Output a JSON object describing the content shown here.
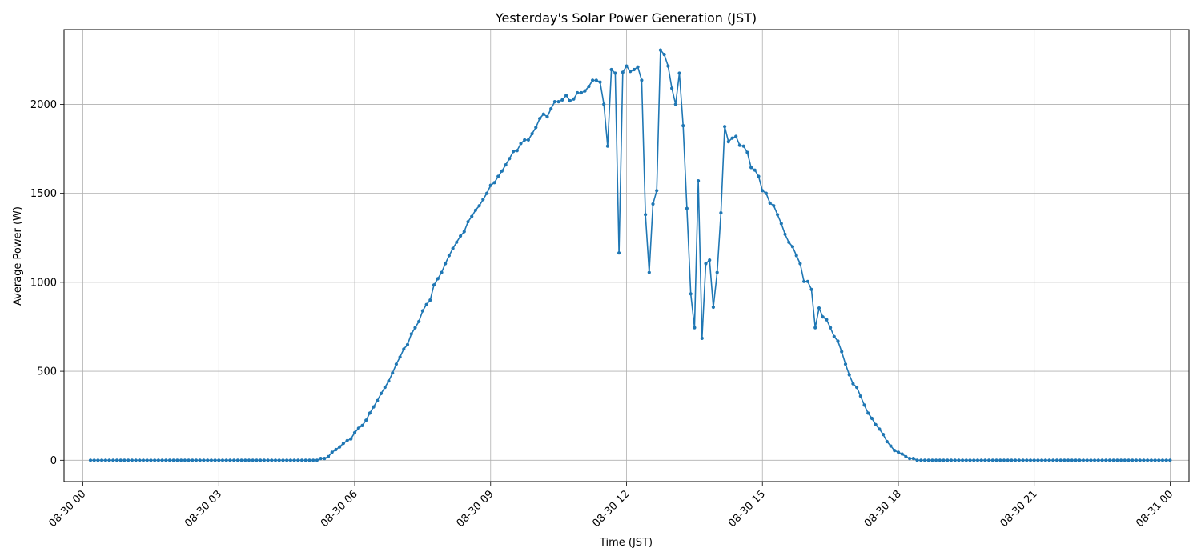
{
  "chart_data": {
    "type": "line",
    "title": "Yesterday's Solar Power Generation (JST)",
    "xlabel": "Time (JST)",
    "ylabel": "Average Power (W)",
    "xlim": [
      "08-29 23:35",
      "08-31 00:25"
    ],
    "ylim": [
      -120,
      2420
    ],
    "grid": true,
    "x_ticks": [
      "08-30 00",
      "08-30 03",
      "08-30 06",
      "08-30 09",
      "08-30 12",
      "08-30 15",
      "08-30 18",
      "08-30 21",
      "08-31 00"
    ],
    "y_ticks": [
      0,
      500,
      1000,
      1500,
      2000
    ],
    "series": [
      {
        "color": "#1f77b4",
        "marker": "circle",
        "points": [
          [
            "08-30 00:10",
            0
          ],
          [
            "08-30 05:10",
            0
          ],
          [
            "08-30 05:15",
            10
          ],
          [
            "08-30 05:20",
            10
          ],
          [
            "08-30 05:25",
            20
          ],
          [
            "08-30 05:30",
            45
          ],
          [
            "08-30 05:35",
            60
          ],
          [
            "08-30 05:40",
            75
          ],
          [
            "08-30 05:45",
            95
          ],
          [
            "08-30 05:50",
            110
          ],
          [
            "08-30 05:55",
            120
          ],
          [
            "08-30 06:00",
            155
          ],
          [
            "08-30 06:05",
            180
          ],
          [
            "08-30 06:10",
            195
          ],
          [
            "08-30 06:15",
            225
          ],
          [
            "08-30 06:20",
            265
          ],
          [
            "08-30 06:25",
            300
          ],
          [
            "08-30 06:30",
            335
          ],
          [
            "08-30 06:35",
            375
          ],
          [
            "08-30 06:40",
            410
          ],
          [
            "08-30 06:45",
            445
          ],
          [
            "08-30 06:50",
            490
          ],
          [
            "08-30 06:55",
            540
          ],
          [
            "08-30 07:00",
            580
          ],
          [
            "08-30 07:05",
            625
          ],
          [
            "08-30 07:10",
            650
          ],
          [
            "08-30 07:15",
            710
          ],
          [
            "08-30 07:20",
            745
          ],
          [
            "08-30 07:25",
            780
          ],
          [
            "08-30 07:30",
            840
          ],
          [
            "08-30 07:35",
            875
          ],
          [
            "08-30 07:40",
            900
          ],
          [
            "08-30 07:45",
            985
          ],
          [
            "08-30 07:50",
            1020
          ],
          [
            "08-30 07:55",
            1055
          ],
          [
            "08-30 08:00",
            1105
          ],
          [
            "08-30 08:05",
            1150
          ],
          [
            "08-30 08:10",
            1190
          ],
          [
            "08-30 08:15",
            1225
          ],
          [
            "08-30 08:20",
            1260
          ],
          [
            "08-30 08:25",
            1285
          ],
          [
            "08-30 08:30",
            1340
          ],
          [
            "08-30 08:35",
            1370
          ],
          [
            "08-30 08:40",
            1405
          ],
          [
            "08-30 08:45",
            1430
          ],
          [
            "08-30 08:50",
            1465
          ],
          [
            "08-30 08:55",
            1500
          ],
          [
            "08-30 09:00",
            1545
          ],
          [
            "08-30 09:05",
            1560
          ],
          [
            "08-30 09:10",
            1595
          ],
          [
            "08-30 09:15",
            1625
          ],
          [
            "08-30 09:20",
            1660
          ],
          [
            "08-30 09:25",
            1695
          ],
          [
            "08-30 09:30",
            1735
          ],
          [
            "08-30 09:35",
            1740
          ],
          [
            "08-30 09:40",
            1780
          ],
          [
            "08-30 09:45",
            1800
          ],
          [
            "08-30 09:50",
            1800
          ],
          [
            "08-30 09:55",
            1835
          ],
          [
            "08-30 10:00",
            1870
          ],
          [
            "08-30 10:05",
            1920
          ],
          [
            "08-30 10:10",
            1945
          ],
          [
            "08-30 10:15",
            1930
          ],
          [
            "08-30 10:20",
            1975
          ],
          [
            "08-30 10:25",
            2015
          ],
          [
            "08-30 10:30",
            2015
          ],
          [
            "08-30 10:35",
            2025
          ],
          [
            "08-30 10:40",
            2050
          ],
          [
            "08-30 10:45",
            2020
          ],
          [
            "08-30 10:50",
            2030
          ],
          [
            "08-30 10:55",
            2065
          ],
          [
            "08-30 11:00",
            2065
          ],
          [
            "08-30 11:05",
            2075
          ],
          [
            "08-30 11:10",
            2100
          ],
          [
            "08-30 11:15",
            2135
          ],
          [
            "08-30 11:20",
            2135
          ],
          [
            "08-30 11:25",
            2125
          ],
          [
            "08-30 11:30",
            2000
          ],
          [
            "08-30 11:35",
            1765
          ],
          [
            "08-30 11:40",
            2195
          ],
          [
            "08-30 11:45",
            2175
          ],
          [
            "08-30 11:50",
            1165
          ],
          [
            "08-30 11:55",
            2180
          ],
          [
            "08-30 12:00",
            2215
          ],
          [
            "08-30 12:05",
            2185
          ],
          [
            "08-30 12:10",
            2195
          ],
          [
            "08-30 12:15",
            2210
          ],
          [
            "08-30 12:20",
            2135
          ],
          [
            "08-30 12:25",
            1380
          ],
          [
            "08-30 12:30",
            1055
          ],
          [
            "08-30 12:35",
            1440
          ],
          [
            "08-30 12:40",
            1515
          ],
          [
            "08-30 12:45",
            2305
          ],
          [
            "08-30 12:50",
            2280
          ],
          [
            "08-30 12:55",
            2215
          ],
          [
            "08-30 13:00",
            2090
          ],
          [
            "08-30 13:05",
            2000
          ],
          [
            "08-30 13:10",
            2175
          ],
          [
            "08-30 13:15",
            1880
          ],
          [
            "08-30 13:20",
            1415
          ],
          [
            "08-30 13:25",
            935
          ],
          [
            "08-30 13:30",
            745
          ],
          [
            "08-30 13:35",
            1570
          ],
          [
            "08-30 13:40",
            685
          ],
          [
            "08-30 13:45",
            1105
          ],
          [
            "08-30 13:50",
            1125
          ],
          [
            "08-30 13:55",
            860
          ],
          [
            "08-30 14:00",
            1055
          ],
          [
            "08-30 14:05",
            1390
          ],
          [
            "08-30 14:10",
            1875
          ],
          [
            "08-30 14:15",
            1790
          ],
          [
            "08-30 14:20",
            1810
          ],
          [
            "08-30 14:25",
            1820
          ],
          [
            "08-30 14:30",
            1770
          ],
          [
            "08-30 14:35",
            1765
          ],
          [
            "08-30 14:40",
            1730
          ],
          [
            "08-30 14:45",
            1645
          ],
          [
            "08-30 14:50",
            1630
          ],
          [
            "08-30 14:55",
            1595
          ],
          [
            "08-30 15:00",
            1515
          ],
          [
            "08-30 15:05",
            1500
          ],
          [
            "08-30 15:10",
            1445
          ],
          [
            "08-30 15:15",
            1430
          ],
          [
            "08-30 15:20",
            1380
          ],
          [
            "08-30 15:25",
            1330
          ],
          [
            "08-30 15:30",
            1270
          ],
          [
            "08-30 15:35",
            1225
          ],
          [
            "08-30 15:40",
            1200
          ],
          [
            "08-30 15:45",
            1150
          ],
          [
            "08-30 15:50",
            1105
          ],
          [
            "08-30 15:55",
            1005
          ],
          [
            "08-30 16:00",
            1005
          ],
          [
            "08-30 16:05",
            960
          ],
          [
            "08-30 16:10",
            745
          ],
          [
            "08-30 16:15",
            855
          ],
          [
            "08-30 16:20",
            805
          ],
          [
            "08-30 16:25",
            790
          ],
          [
            "08-30 16:30",
            745
          ],
          [
            "08-30 16:35",
            695
          ],
          [
            "08-30 16:40",
            670
          ],
          [
            "08-30 16:45",
            610
          ],
          [
            "08-30 16:50",
            540
          ],
          [
            "08-30 16:55",
            480
          ],
          [
            "08-30 17:00",
            430
          ],
          [
            "08-30 17:05",
            410
          ],
          [
            "08-30 17:10",
            360
          ],
          [
            "08-30 17:15",
            310
          ],
          [
            "08-30 17:20",
            265
          ],
          [
            "08-30 17:25",
            235
          ],
          [
            "08-30 17:30",
            200
          ],
          [
            "08-30 17:35",
            175
          ],
          [
            "08-30 17:40",
            145
          ],
          [
            "08-30 17:45",
            105
          ],
          [
            "08-30 17:50",
            80
          ],
          [
            "08-30 17:55",
            55
          ],
          [
            "08-30 18:00",
            45
          ],
          [
            "08-30 18:05",
            35
          ],
          [
            "08-30 18:10",
            20
          ],
          [
            "08-30 18:15",
            10
          ],
          [
            "08-30 18:20",
            10
          ],
          [
            "08-30 18:25",
            0
          ],
          [
            "08-31 00:00",
            0
          ]
        ]
      }
    ]
  }
}
